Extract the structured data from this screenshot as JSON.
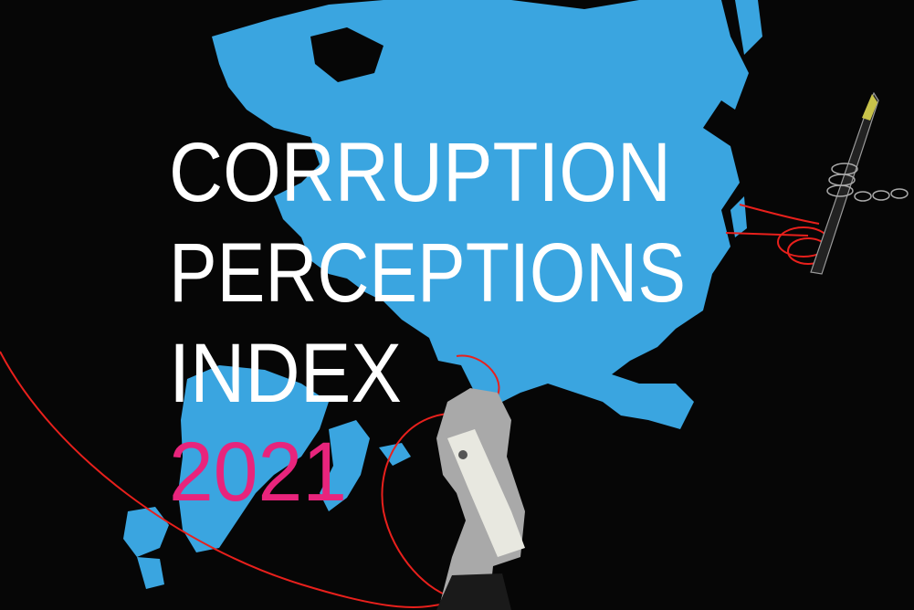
{
  "poster": {
    "title_lines": [
      "CORRUPTION",
      "PERCEPTIONS",
      "INDEX"
    ],
    "year": "2021"
  },
  "colors": {
    "background": "#060606",
    "map": "#3aa5e0",
    "title": "#ffffff",
    "year": "#e8247c",
    "thread": "#e8201c"
  },
  "icons": [
    "world-map-illustration",
    "hand-with-money-illustration",
    "chained-pen-illustration",
    "red-thread"
  ]
}
